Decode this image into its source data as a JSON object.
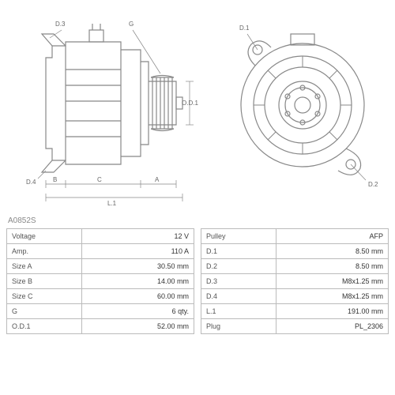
{
  "part_number": "A0852S",
  "diagram": {
    "stroke_color": "#888888",
    "stroke_width": 1.2,
    "background": "#ffffff",
    "label_color": "#666666",
    "label_fontsize": 8,
    "side_view": {
      "labels": [
        "D.3",
        "G",
        "D.4",
        "B",
        "C",
        "A",
        "L.1",
        "O.D.1"
      ]
    },
    "front_view": {
      "labels": [
        "D.1",
        "D.2"
      ]
    }
  },
  "table_left": {
    "rows": [
      {
        "label": "Voltage",
        "value": "12 V"
      },
      {
        "label": "Amp.",
        "value": "110 A"
      },
      {
        "label": "Size A",
        "value": "30.50 mm"
      },
      {
        "label": "Size B",
        "value": "14.00 mm"
      },
      {
        "label": "Size C",
        "value": "60.00 mm"
      },
      {
        "label": "G",
        "value": "6 qty."
      },
      {
        "label": "O.D.1",
        "value": "52.00 mm"
      }
    ]
  },
  "table_right": {
    "rows": [
      {
        "label": "Pulley",
        "value": "AFP"
      },
      {
        "label": "D.1",
        "value": "8.50 mm"
      },
      {
        "label": "D.2",
        "value": "8.50 mm"
      },
      {
        "label": "D.3",
        "value": "M8x1.25 mm"
      },
      {
        "label": "D.4",
        "value": "M8x1.25 mm"
      },
      {
        "label": "L.1",
        "value": "191.00 mm"
      },
      {
        "label": "Plug",
        "value": "PL_2306"
      }
    ]
  },
  "style": {
    "border_color": "#bbbbbb",
    "text_color": "#333333",
    "muted_color": "#888888"
  }
}
